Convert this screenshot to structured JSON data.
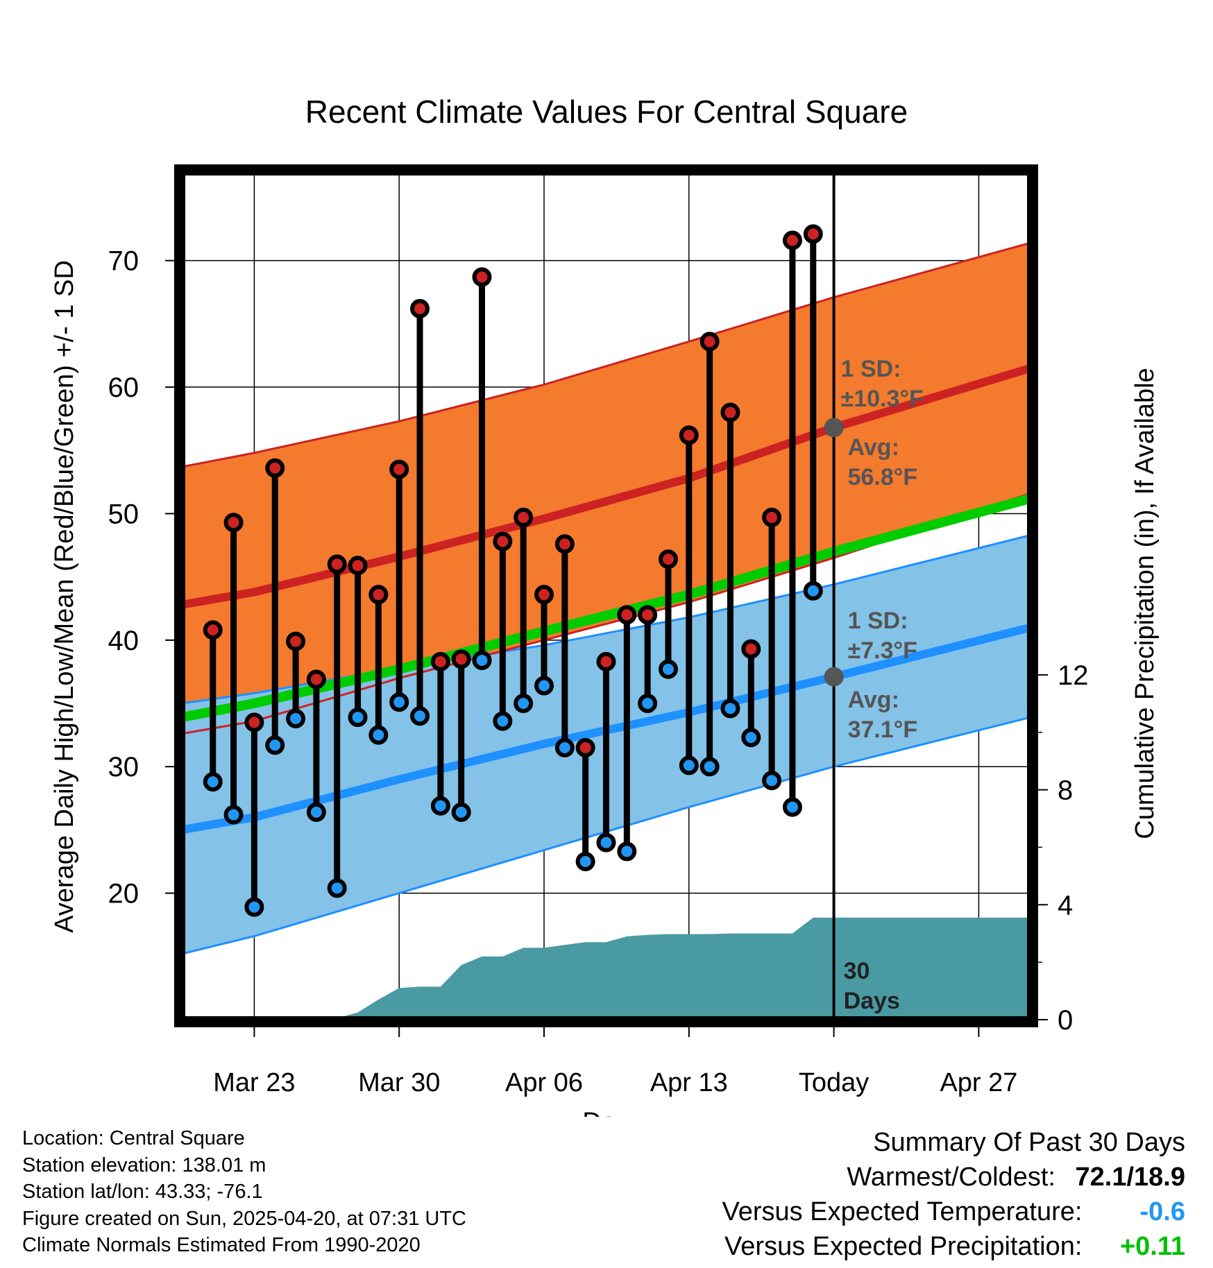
{
  "chart_data": {
    "type": "line",
    "title": "Recent Climate Values For Central Square",
    "xlabel": "Day",
    "ylabel": "Average Daily High/Low/Mean (Red/Blue/Green) +/- 1 SD",
    "y2label": "Cumulative Precipitation (in), If Available",
    "ylim": [
      10,
      77
    ],
    "y2lim": [
      0,
      29.5
    ],
    "yticks": [
      20,
      30,
      40,
      50,
      60,
      70
    ],
    "y2ticks": [
      0,
      4,
      8,
      12
    ],
    "xlim": [
      -3.5,
      37.5
    ],
    "x_tick_labels": [
      {
        "day": 0,
        "label": "Mar 23"
      },
      {
        "day": 7,
        "label": "Mar 30"
      },
      {
        "day": 14,
        "label": "Apr 06"
      },
      {
        "day": 21,
        "label": "Apr 13"
      },
      {
        "day": 28,
        "label": "Today"
      },
      {
        "day": 35,
        "label": "Apr 27"
      }
    ],
    "today_day": 28,
    "grid": true,
    "normals": {
      "high_mean": {
        "day": [
          -3.5,
          0,
          7,
          14,
          21,
          28,
          37.5
        ],
        "value": [
          42.8,
          43.8,
          46.6,
          49.6,
          52.8,
          56.8,
          61.5
        ]
      },
      "high_upper": {
        "day": [
          -3.5,
          0,
          7,
          14,
          21,
          28,
          37.5
        ],
        "value": [
          53.7,
          54.8,
          57.3,
          60.2,
          63.6,
          67.1,
          71.4
        ]
      },
      "high_lower": {
        "day": [
          -3.5,
          0,
          7,
          14,
          21,
          28,
          37.5
        ],
        "value": [
          32.6,
          33.6,
          37.0,
          40.0,
          43.0,
          46.5,
          51.6
        ]
      },
      "low_mean": {
        "day": [
          -3.5,
          0,
          7,
          14,
          21,
          28,
          37.5
        ],
        "value": [
          25.0,
          26.0,
          29.0,
          31.8,
          34.3,
          37.1,
          41.0
        ]
      },
      "low_upper": {
        "day": [
          -3.5,
          0,
          7,
          14,
          21,
          28,
          37.5
        ],
        "value": [
          35.0,
          35.8,
          37.8,
          39.6,
          41.8,
          44.4,
          48.3
        ]
      },
      "low_lower": {
        "day": [
          -3.5,
          0,
          7,
          14,
          21,
          28,
          37.5
        ],
        "value": [
          15.2,
          16.6,
          20.0,
          23.4,
          26.8,
          30.0,
          33.9
        ]
      },
      "mean": {
        "day": [
          -3.5,
          0,
          7,
          14,
          21,
          28,
          37.5
        ],
        "value": [
          33.9,
          35.0,
          37.7,
          40.7,
          43.6,
          47.0,
          51.2
        ]
      }
    },
    "series": [
      {
        "name": "High",
        "x": [
          -2,
          -1,
          0,
          1,
          2,
          3,
          4,
          5,
          6,
          7,
          8,
          9,
          10,
          11,
          12,
          13,
          14,
          15,
          16,
          17,
          18,
          19,
          20,
          21,
          22,
          23,
          24,
          25,
          26,
          27
        ],
        "values": [
          40.8,
          49.3,
          33.5,
          53.6,
          39.9,
          36.9,
          46.0,
          45.9,
          43.6,
          53.5,
          66.2,
          38.3,
          38.5,
          68.7,
          47.8,
          49.7,
          43.6,
          47.6,
          31.5,
          38.3,
          42.0,
          42.0,
          46.4,
          56.2,
          63.6,
          58.0,
          39.3,
          49.7,
          71.6,
          72.1
        ]
      },
      {
        "name": "Low",
        "x": [
          -2,
          -1,
          0,
          1,
          2,
          3,
          4,
          5,
          6,
          7,
          8,
          9,
          10,
          11,
          12,
          13,
          14,
          15,
          16,
          17,
          18,
          19,
          20,
          21,
          22,
          23,
          24,
          25,
          26,
          27
        ],
        "values": [
          28.8,
          26.2,
          18.9,
          31.7,
          33.8,
          26.4,
          20.4,
          33.9,
          32.5,
          35.1,
          34.0,
          26.9,
          26.4,
          38.4,
          33.6,
          35.0,
          36.4,
          31.5,
          22.5,
          24.0,
          23.3,
          35.0,
          37.7,
          30.1,
          30.0,
          34.6,
          32.3,
          28.9,
          26.8,
          43.9
        ]
      }
    ],
    "precipitation_cumulative": {
      "x": [
        -2,
        -1,
        0,
        1,
        2,
        3,
        4,
        5,
        6,
        7,
        8,
        9,
        10,
        11,
        12,
        13,
        14,
        15,
        16,
        17,
        18,
        19,
        20,
        21,
        22,
        23,
        24,
        25,
        26,
        27,
        37.5
      ],
      "values": [
        0,
        0,
        0,
        0,
        0,
        0,
        0.05,
        0.25,
        0.7,
        1.1,
        1.15,
        1.15,
        1.9,
        2.2,
        2.2,
        2.5,
        2.5,
        2.6,
        2.7,
        2.7,
        2.9,
        2.95,
        2.98,
        2.98,
        2.98,
        3.0,
        3.0,
        3.0,
        3.0,
        3.55,
        3.55
      ]
    },
    "annotations": {
      "high_sd_label": "1 SD:",
      "high_sd_value": "±10.3°F",
      "high_avg_label": "Avg:",
      "high_avg_value": "56.8°F",
      "low_sd_label": "1 SD:",
      "low_sd_value": "±7.3°F",
      "low_avg_label": "Avg:",
      "low_avg_value": "37.1°F",
      "days_count": "30",
      "days_word": "Days"
    },
    "colors": {
      "high_band": "#f47a2e",
      "high_line": "#cc2222",
      "low_band": "#84c2e8",
      "low_line": "#1e90ff",
      "mean_line": "#00cc00",
      "precip": "#4a9aa4",
      "high_marker": "#cc2222",
      "low_marker": "#2196f3",
      "annotation": "#555555"
    }
  },
  "footer": {
    "location": "Location: Central Square",
    "elevation": "Station elevation: 138.01 m",
    "latlon": "Station lat/lon: 43.33; -76.1",
    "created": "Figure created on Sun, 2025-04-20, at 07:31 UTC",
    "normals": "Climate Normals Estimated From 1990-2020"
  },
  "summary": {
    "heading": "Summary Of Past 30 Days",
    "warmest_label": "Warmest/Coldest:",
    "warmest_value": "72.1/18.9",
    "temp_label": "Versus Expected Temperature:",
    "temp_value": "-0.6",
    "temp_color": "#2196f3",
    "precip_label": "Versus Expected Precipitation:",
    "precip_value": "+0.11",
    "precip_color": "#00c000"
  }
}
